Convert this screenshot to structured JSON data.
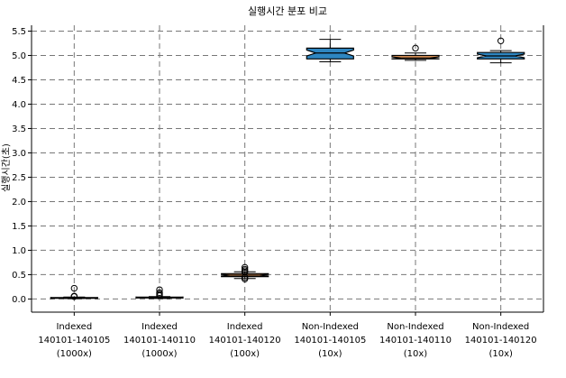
{
  "chart_data": {
    "type": "box",
    "title": "실행시간 분포 비교",
    "ylabel": "실행시간(초)",
    "xlabel": "",
    "ylim": [
      -0.27,
      5.62
    ],
    "yticks": [
      0.0,
      0.5,
      1.0,
      1.5,
      2.0,
      2.5,
      3.0,
      3.5,
      4.0,
      4.5,
      5.0,
      5.5
    ],
    "grid": true,
    "notched": true,
    "categories": [
      [
        "Indexed",
        "140101-140105",
        "(1000x)"
      ],
      [
        "Indexed",
        "140101-140110",
        "(1000x)"
      ],
      [
        "Indexed",
        "140101-140120",
        "(100x)"
      ],
      [
        "Non-Indexed",
        "140101-140105",
        "(10x)"
      ],
      [
        "Non-Indexed",
        "140101-140110",
        "(10x)"
      ],
      [
        "Non-Indexed",
        "140101-140120",
        "(10x)"
      ]
    ],
    "series": [
      {
        "colors": [
          "#f0a060",
          "#f0a060",
          "#f0a060",
          "#2e86c1",
          "#f0a060",
          "#2e86c1"
        ],
        "boxes": [
          {
            "whisker_low": 0.01,
            "q1": 0.015,
            "median": 0.02,
            "q3": 0.03,
            "whisker_high": 0.04,
            "outliers": [
              0.05,
              0.06,
              0.22
            ]
          },
          {
            "whisker_low": 0.01,
            "q1": 0.02,
            "median": 0.03,
            "q3": 0.04,
            "whisker_high": 0.05,
            "outliers": [
              0.07,
              0.1,
              0.13,
              0.19
            ]
          },
          {
            "whisker_low": 0.42,
            "q1": 0.46,
            "median": 0.49,
            "q3": 0.52,
            "whisker_high": 0.56,
            "outliers": [
              0.41,
              0.44,
              0.55,
              0.58,
              0.61,
              0.65
            ]
          },
          {
            "whisker_low": 4.87,
            "q1": 4.93,
            "median": 5.05,
            "q3": 5.15,
            "whisker_high": 5.33,
            "outliers": []
          },
          {
            "whisker_low": 4.9,
            "q1": 4.93,
            "median": 4.95,
            "q3": 5.0,
            "whisker_high": 5.05,
            "outliers": [
              5.15
            ]
          },
          {
            "whisker_low": 4.85,
            "q1": 4.93,
            "median": 4.99,
            "q3": 5.06,
            "whisker_high": 5.1,
            "outliers": [
              5.3
            ]
          }
        ]
      }
    ]
  }
}
